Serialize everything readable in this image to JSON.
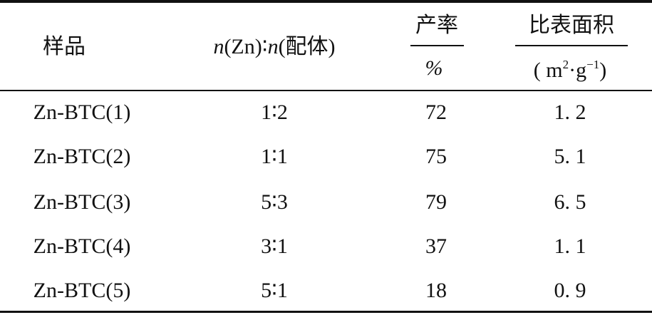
{
  "table": {
    "headers": {
      "sample": "样品",
      "ratio_var_n": "n",
      "ratio_zn": "(Zn)∶",
      "ratio_var_n2": "n",
      "ratio_ligand": "(配体)",
      "yield_top": "产率",
      "yield_unit": "%",
      "area_top": "比表面积",
      "area_unit_open": "( m",
      "area_unit_exp1": "2",
      "area_unit_mid": "·g",
      "area_unit_exp2": "−1",
      "area_unit_close": ")"
    },
    "rows": [
      {
        "sample": "Zn-BTC(1)",
        "ratio": "1∶2",
        "yield": "72",
        "area": "1. 2"
      },
      {
        "sample": "Zn-BTC(2)",
        "ratio": "1∶1",
        "yield": "75",
        "area": "5. 1"
      },
      {
        "sample": "Zn-BTC(3)",
        "ratio": "5∶3",
        "yield": "79",
        "area": "6. 5"
      },
      {
        "sample": "Zn-BTC(4)",
        "ratio": "3∶1",
        "yield": "37",
        "area": "1. 1"
      },
      {
        "sample": "Zn-BTC(5)",
        "ratio": "5∶1",
        "yield": "18",
        "area": "0. 9"
      }
    ]
  }
}
